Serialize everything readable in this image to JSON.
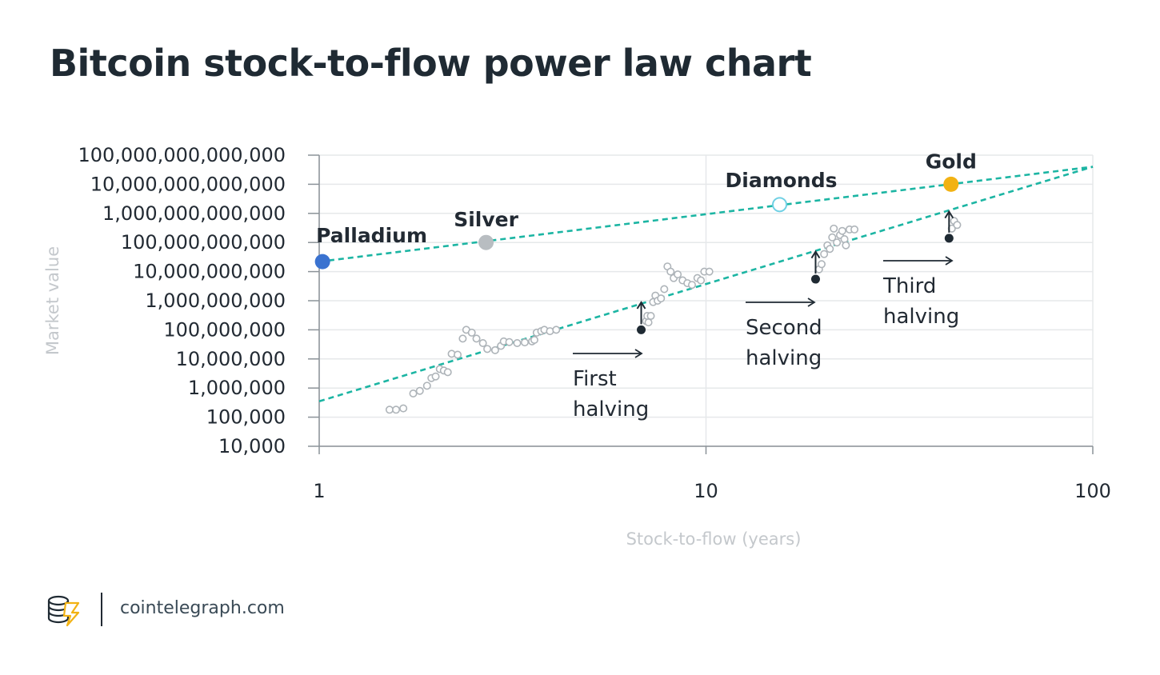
{
  "title": "Bitcoin stock-to-flow power law chart",
  "footer": {
    "brand": "cointelegraph.com",
    "logo_icon": "cointelegraph-logo-icon"
  },
  "colors": {
    "trend_line": "#1cb5a3",
    "grid": "#e6e8ea",
    "btc_point_stroke": "#aeb4b9",
    "palladium": "#3a72d0",
    "silver": "#b8bdc1",
    "diamonds_stroke": "#6fd0e4",
    "gold": "#f2b213",
    "halving_marker": "#1f2a33"
  },
  "chart_data": {
    "type": "scatter",
    "title": "Bitcoin stock-to-flow power law chart",
    "xlabel": "Stock-to-flow (years)",
    "ylabel": "Market value",
    "x_scale": "log",
    "y_scale": "log",
    "xlim": [
      1,
      100
    ],
    "ylim": [
      10000,
      100000000000000
    ],
    "x_ticks": [
      1,
      10,
      100
    ],
    "x_tick_labels": [
      "1",
      "10",
      "100"
    ],
    "y_ticks": [
      10000,
      100000,
      1000000,
      10000000,
      100000000,
      1000000000,
      10000000000,
      100000000000,
      1000000000000,
      10000000000000,
      100000000000000
    ],
    "y_tick_labels": [
      "10,000",
      "100,000",
      "1,000,000",
      "10,000,000",
      "100,000,000",
      "1,000,000,000",
      "10,000,000,000",
      "100,000,000,000",
      "1,000,000,000,000",
      "10,000,000,000,000",
      "100,000,000,000,000"
    ],
    "grid": true,
    "trend_lines": [
      {
        "x": [
          1,
          100
        ],
        "y": [
          350000,
          40000000000000
        ]
      },
      {
        "x": [
          1,
          100
        ],
        "y": [
          22000000000,
          40000000000000
        ]
      }
    ],
    "materials": [
      {
        "label": "Palladium",
        "x": 1.02,
        "y": 22000000000,
        "style": "filled",
        "color": "palladium"
      },
      {
        "label": "Silver",
        "x": 2.7,
        "y": 100000000000,
        "style": "filled",
        "color": "silver"
      },
      {
        "label": "Diamonds",
        "x": 15.5,
        "y": 2000000000000,
        "style": "hollow",
        "color": "diamonds_stroke"
      },
      {
        "label": "Gold",
        "x": 43,
        "y": 10000000000000,
        "style": "filled",
        "color": "gold"
      }
    ],
    "halvings": [
      {
        "label": [
          "First",
          "halving"
        ],
        "x": 6.8,
        "y_before": 100000000,
        "y_after": 1000000000
      },
      {
        "label": [
          "Second",
          "halving"
        ],
        "x": 19.2,
        "y_before": 5500000000,
        "y_after": 55000000000
      },
      {
        "label": [
          "Third",
          "halving"
        ],
        "x": 42.5,
        "y_before": 140000000000,
        "y_after": 1300000000000
      }
    ],
    "btc_points": [
      [
        1.52,
        180000
      ],
      [
        1.58,
        180000
      ],
      [
        1.65,
        200000
      ],
      [
        1.75,
        650000
      ],
      [
        1.82,
        800000
      ],
      [
        1.9,
        1200000
      ],
      [
        1.95,
        2200000
      ],
      [
        2.0,
        2500000
      ],
      [
        2.05,
        4500000
      ],
      [
        2.1,
        4000000
      ],
      [
        2.15,
        3500000
      ],
      [
        2.2,
        15000000
      ],
      [
        2.28,
        14000000
      ],
      [
        2.35,
        50000000
      ],
      [
        2.4,
        100000000
      ],
      [
        2.48,
        80000000
      ],
      [
        2.55,
        50000000
      ],
      [
        2.65,
        35000000
      ],
      [
        2.72,
        22000000
      ],
      [
        2.85,
        20000000
      ],
      [
        2.95,
        28000000
      ],
      [
        3.0,
        40000000
      ],
      [
        3.1,
        38000000
      ],
      [
        3.25,
        35000000
      ],
      [
        3.4,
        37000000
      ],
      [
        3.55,
        40000000
      ],
      [
        3.6,
        45000000
      ],
      [
        3.65,
        80000000
      ],
      [
        3.75,
        90000000
      ],
      [
        3.82,
        100000000
      ],
      [
        3.95,
        90000000
      ],
      [
        4.1,
        100000000
      ],
      [
        7.0,
        200000000
      ],
      [
        7.05,
        300000000
      ],
      [
        7.1,
        180000000
      ],
      [
        7.2,
        300000000
      ],
      [
        7.3,
        900000000
      ],
      [
        7.4,
        1500000000
      ],
      [
        7.5,
        1000000000
      ],
      [
        7.65,
        1200000000
      ],
      [
        7.8,
        2500000000
      ],
      [
        7.95,
        15000000000
      ],
      [
        8.1,
        10000000000
      ],
      [
        8.25,
        6000000000
      ],
      [
        8.45,
        8000000000
      ],
      [
        8.7,
        5000000000
      ],
      [
        8.95,
        4000000000
      ],
      [
        9.2,
        3500000000
      ],
      [
        9.5,
        6000000000
      ],
      [
        9.7,
        5000000000
      ],
      [
        9.9,
        10000000000
      ],
      [
        10.2,
        10000000000
      ],
      [
        19.6,
        12000000000
      ],
      [
        19.9,
        18000000000
      ],
      [
        20.2,
        40000000000
      ],
      [
        20.6,
        80000000000
      ],
      [
        20.9,
        60000000000
      ],
      [
        21.2,
        150000000000
      ],
      [
        21.4,
        300000000000
      ],
      [
        21.8,
        100000000000
      ],
      [
        22.2,
        180000000000
      ],
      [
        22.5,
        250000000000
      ],
      [
        22.8,
        130000000000
      ],
      [
        23.0,
        80000000000
      ],
      [
        23.5,
        280000000000
      ],
      [
        24.2,
        280000000000
      ],
      [
        43.2,
        300000000000
      ],
      [
        43.8,
        550000000000
      ],
      [
        44.6,
        400000000000
      ]
    ]
  }
}
